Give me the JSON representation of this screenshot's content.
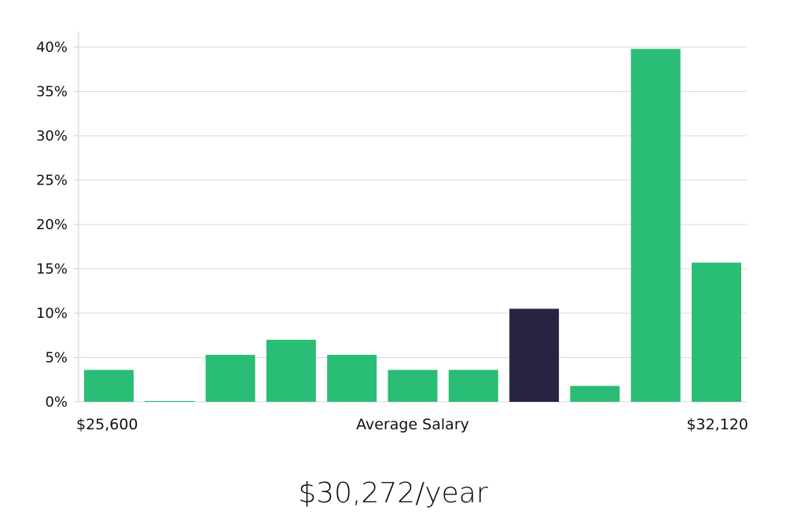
{
  "chart_data": {
    "type": "bar",
    "title": "",
    "xlabel": "Average Salary",
    "ylabel": "",
    "x_range_labels": {
      "min": "$25,600",
      "max": "$32,120"
    },
    "ylim": [
      0,
      40
    ],
    "yticks": [
      0,
      5,
      10,
      15,
      20,
      25,
      30,
      35,
      40
    ],
    "ytick_labels": [
      "0%",
      "5%",
      "10%",
      "15%",
      "20%",
      "25%",
      "30%",
      "35%",
      "40%"
    ],
    "grid": true,
    "legend": "none",
    "values": [
      3.6,
      0.1,
      5.3,
      7.0,
      5.3,
      3.6,
      3.6,
      10.5,
      1.8,
      39.8,
      15.7
    ],
    "highlight_index": 7,
    "colors": {
      "bar": "#2abd75",
      "highlight": "#272443",
      "grid": "#d9d9d9",
      "axis": "#cccccc"
    }
  },
  "summary": {
    "salary": "$30,272/year"
  }
}
